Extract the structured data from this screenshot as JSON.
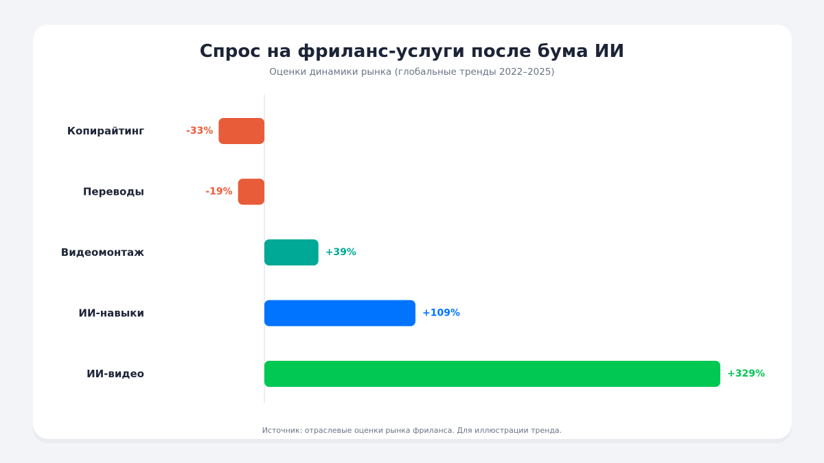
{
  "header": {
    "title": "Спрос на фриланс-услуги после бума ИИ",
    "subtitle": "Оценки динамики рынка (глобальные тренды 2022–2025)"
  },
  "footer": {
    "source": "Источник: отраслевые оценки рынка фриланса. Для иллюстрации тренда."
  },
  "colors": {
    "negative": "#e85c3a",
    "video_editing": "#00a896",
    "ai_skills": "#0073ff",
    "ai_video": "#00c853"
  },
  "chart_data": {
    "type": "bar",
    "orientation": "horizontal",
    "title": "Спрос на фриланс-услуги после бума ИИ",
    "subtitle": "Оценки динамики рынка (глобальные тренды 2022–2025)",
    "categories": [
      "Копирайтинг",
      "Переводы",
      "Видеомонтаж",
      "ИИ-навыки",
      "ИИ-видео"
    ],
    "values": [
      -33,
      -19,
      39,
      109,
      329
    ],
    "value_labels": [
      "-33%",
      "-19%",
      "+39%",
      "+109%",
      "+329%"
    ],
    "bar_colors": [
      "#e85c3a",
      "#e85c3a",
      "#00a896",
      "#0073ff",
      "#00c853"
    ],
    "xlim": [
      -33,
      329
    ],
    "grid": false,
    "legend": "none"
  }
}
